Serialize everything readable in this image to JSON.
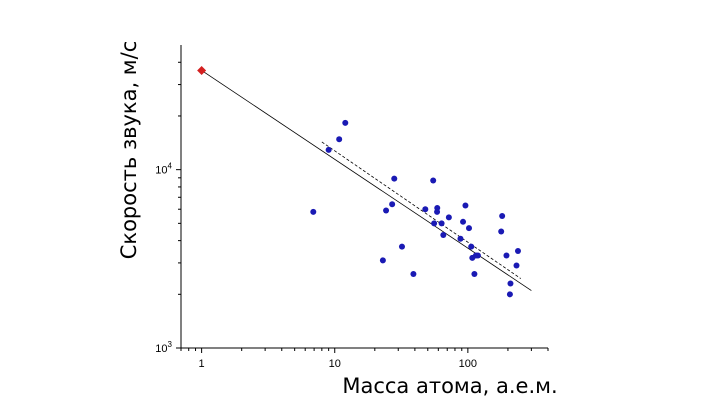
{
  "chart_data": {
    "type": "scatter",
    "xscale": "log",
    "yscale": "log",
    "xlim": [
      0.7,
      400
    ],
    "ylim": [
      1000,
      50000
    ],
    "xlabel": "Масса атома, а.е.м.",
    "ylabel": "Скорость звука, м/с",
    "x_ticks": [
      {
        "value": 1,
        "label": "1"
      },
      {
        "value": 10,
        "label": "10"
      },
      {
        "value": 100,
        "label": "100"
      }
    ],
    "y_ticks": [
      {
        "value": 1000,
        "base": "10",
        "exp": "3"
      },
      {
        "value": 10000,
        "base": "10",
        "exp": "4"
      }
    ],
    "highlight_point": {
      "x": 1,
      "y": 36000,
      "color": "#d42020"
    },
    "point_color": "#1a1ab4",
    "points": [
      {
        "x": 6.9,
        "y": 5800
      },
      {
        "x": 9,
        "y": 12900
      },
      {
        "x": 10.8,
        "y": 14800
      },
      {
        "x": 12,
        "y": 18300
      },
      {
        "x": 23,
        "y": 3100
      },
      {
        "x": 24.3,
        "y": 5900
      },
      {
        "x": 27,
        "y": 6400
      },
      {
        "x": 28,
        "y": 8900
      },
      {
        "x": 32,
        "y": 3700
      },
      {
        "x": 39,
        "y": 2600
      },
      {
        "x": 47.9,
        "y": 6000
      },
      {
        "x": 54.9,
        "y": 8700
      },
      {
        "x": 55.8,
        "y": 5000
      },
      {
        "x": 58.7,
        "y": 5800
      },
      {
        "x": 58.9,
        "y": 6100
      },
      {
        "x": 63.5,
        "y": 5000
      },
      {
        "x": 65.4,
        "y": 4300
      },
      {
        "x": 72,
        "y": 5400
      },
      {
        "x": 88,
        "y": 4100
      },
      {
        "x": 92,
        "y": 5100
      },
      {
        "x": 95.9,
        "y": 6300
      },
      {
        "x": 102,
        "y": 4700
      },
      {
        "x": 106,
        "y": 3700
      },
      {
        "x": 108,
        "y": 3200
      },
      {
        "x": 112,
        "y": 2600
      },
      {
        "x": 115,
        "y": 3300
      },
      {
        "x": 119,
        "y": 3300
      },
      {
        "x": 178,
        "y": 4500
      },
      {
        "x": 181,
        "y": 5500
      },
      {
        "x": 195,
        "y": 3300
      },
      {
        "x": 207,
        "y": 2000
      },
      {
        "x": 209,
        "y": 2300
      },
      {
        "x": 232,
        "y": 2900
      },
      {
        "x": 238,
        "y": 3500
      }
    ],
    "fit_solid": {
      "x": [
        1,
        300
      ],
      "y": [
        36000,
        2100
      ]
    },
    "fit_dashed": {
      "x": [
        8,
        250
      ],
      "y": [
        14300,
        2450
      ]
    },
    "grid": false,
    "legend": "none"
  }
}
